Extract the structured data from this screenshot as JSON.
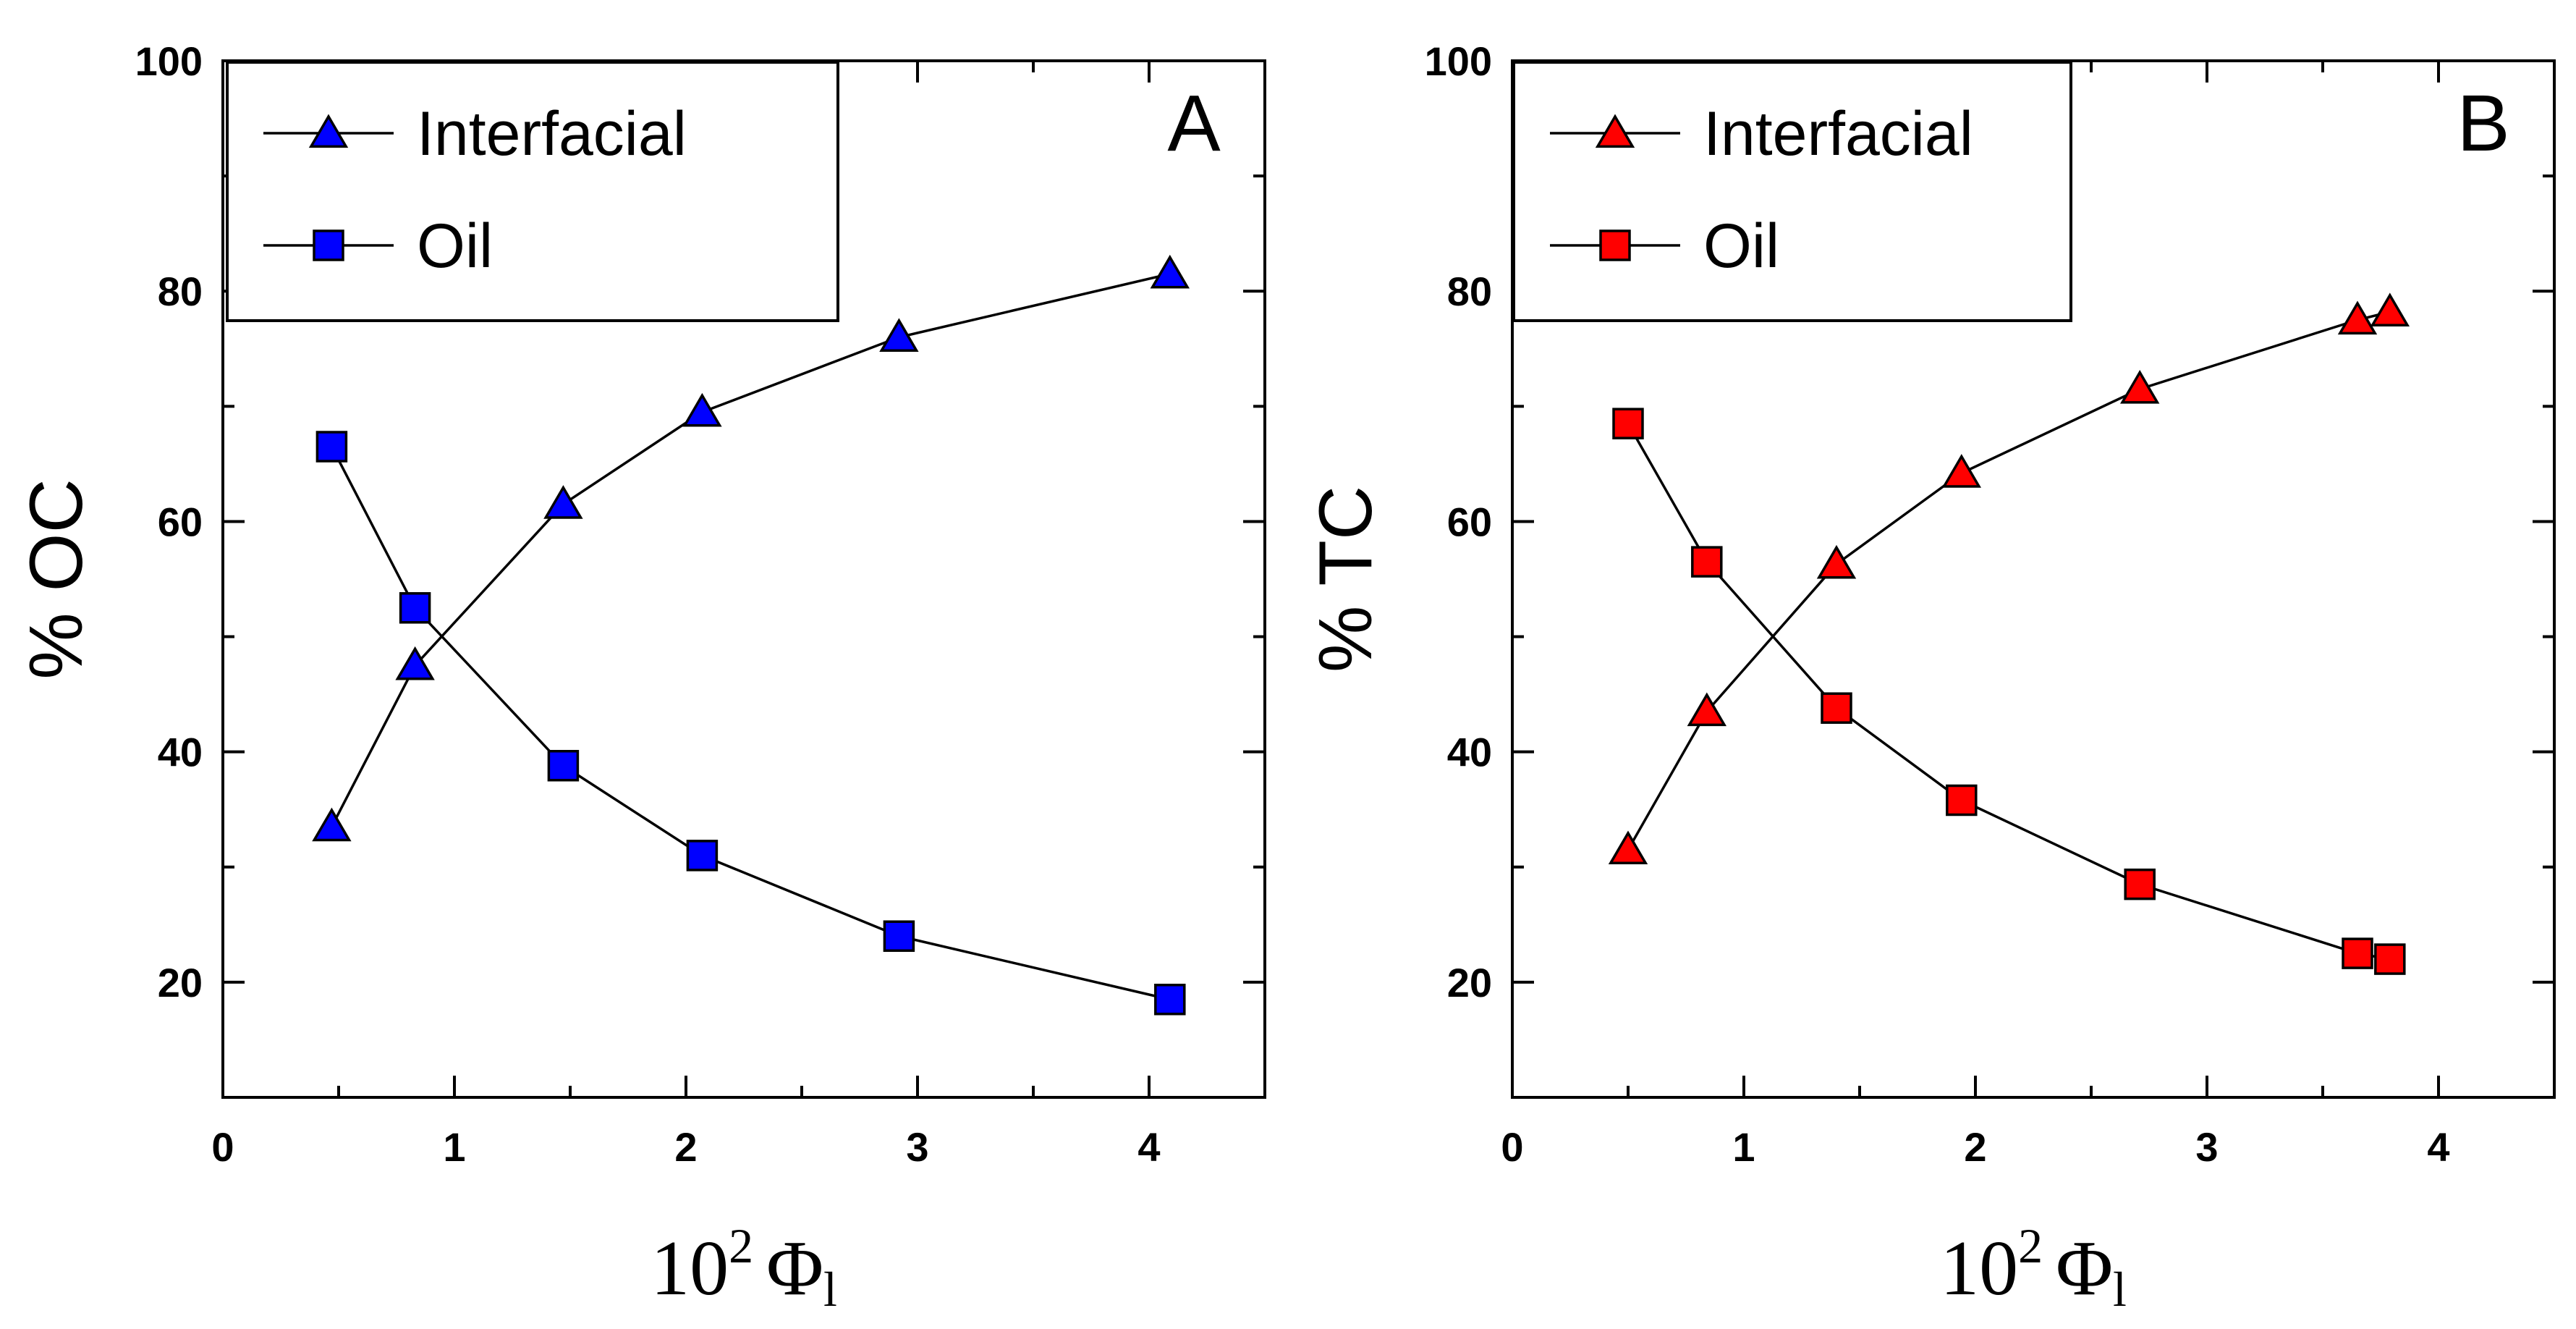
{
  "chart_data": [
    {
      "type": "line",
      "panel_label": "A",
      "xlabel_base": "10",
      "xlabel_exp": "2",
      "xlabel_symbol": "Φ",
      "xlabel_sub": "l",
      "ylabel": "% OC",
      "xlim": [
        0,
        4.5
      ],
      "ylim": [
        10,
        100
      ],
      "xticks": [
        0,
        1,
        2,
        3,
        4
      ],
      "yticks": [
        20,
        40,
        60,
        80,
        100
      ],
      "legend_position": "top-left",
      "series": [
        {
          "name": "Interfacial",
          "marker": "triangle",
          "color": "#0000ff",
          "x": [
            0.47,
            0.83,
            1.47,
            2.07,
            2.92,
            4.09
          ],
          "y": [
            33.5,
            47.5,
            61.5,
            69.5,
            76.0,
            81.5
          ]
        },
        {
          "name": "Oil",
          "marker": "square",
          "color": "#0000ff",
          "x": [
            0.47,
            0.83,
            1.47,
            2.07,
            2.92,
            4.09
          ],
          "y": [
            66.5,
            52.5,
            38.8,
            31.0,
            24.0,
            18.5
          ]
        }
      ]
    },
    {
      "type": "line",
      "panel_label": "B",
      "xlabel_base": "10",
      "xlabel_exp": "2",
      "xlabel_symbol": "Φ",
      "xlabel_sub": "l",
      "ylabel": "% TC",
      "xlim": [
        0,
        4.5
      ],
      "ylim": [
        10,
        100
      ],
      "xticks": [
        0,
        1,
        2,
        3,
        4
      ],
      "yticks": [
        20,
        40,
        60,
        80,
        100
      ],
      "legend_position": "top-left",
      "series": [
        {
          "name": "Interfacial",
          "marker": "triangle",
          "color": "#ff0000",
          "x": [
            0.5,
            0.84,
            1.4,
            1.94,
            2.71,
            3.65,
            3.79
          ],
          "y": [
            31.5,
            43.5,
            56.3,
            64.2,
            71.5,
            77.5,
            78.2
          ]
        },
        {
          "name": "Oil",
          "marker": "square",
          "color": "#ff0000",
          "x": [
            0.5,
            0.84,
            1.4,
            1.94,
            2.71,
            3.65,
            3.79
          ],
          "y": [
            68.5,
            56.5,
            43.8,
            35.8,
            28.5,
            22.5,
            22.0
          ]
        }
      ]
    }
  ]
}
